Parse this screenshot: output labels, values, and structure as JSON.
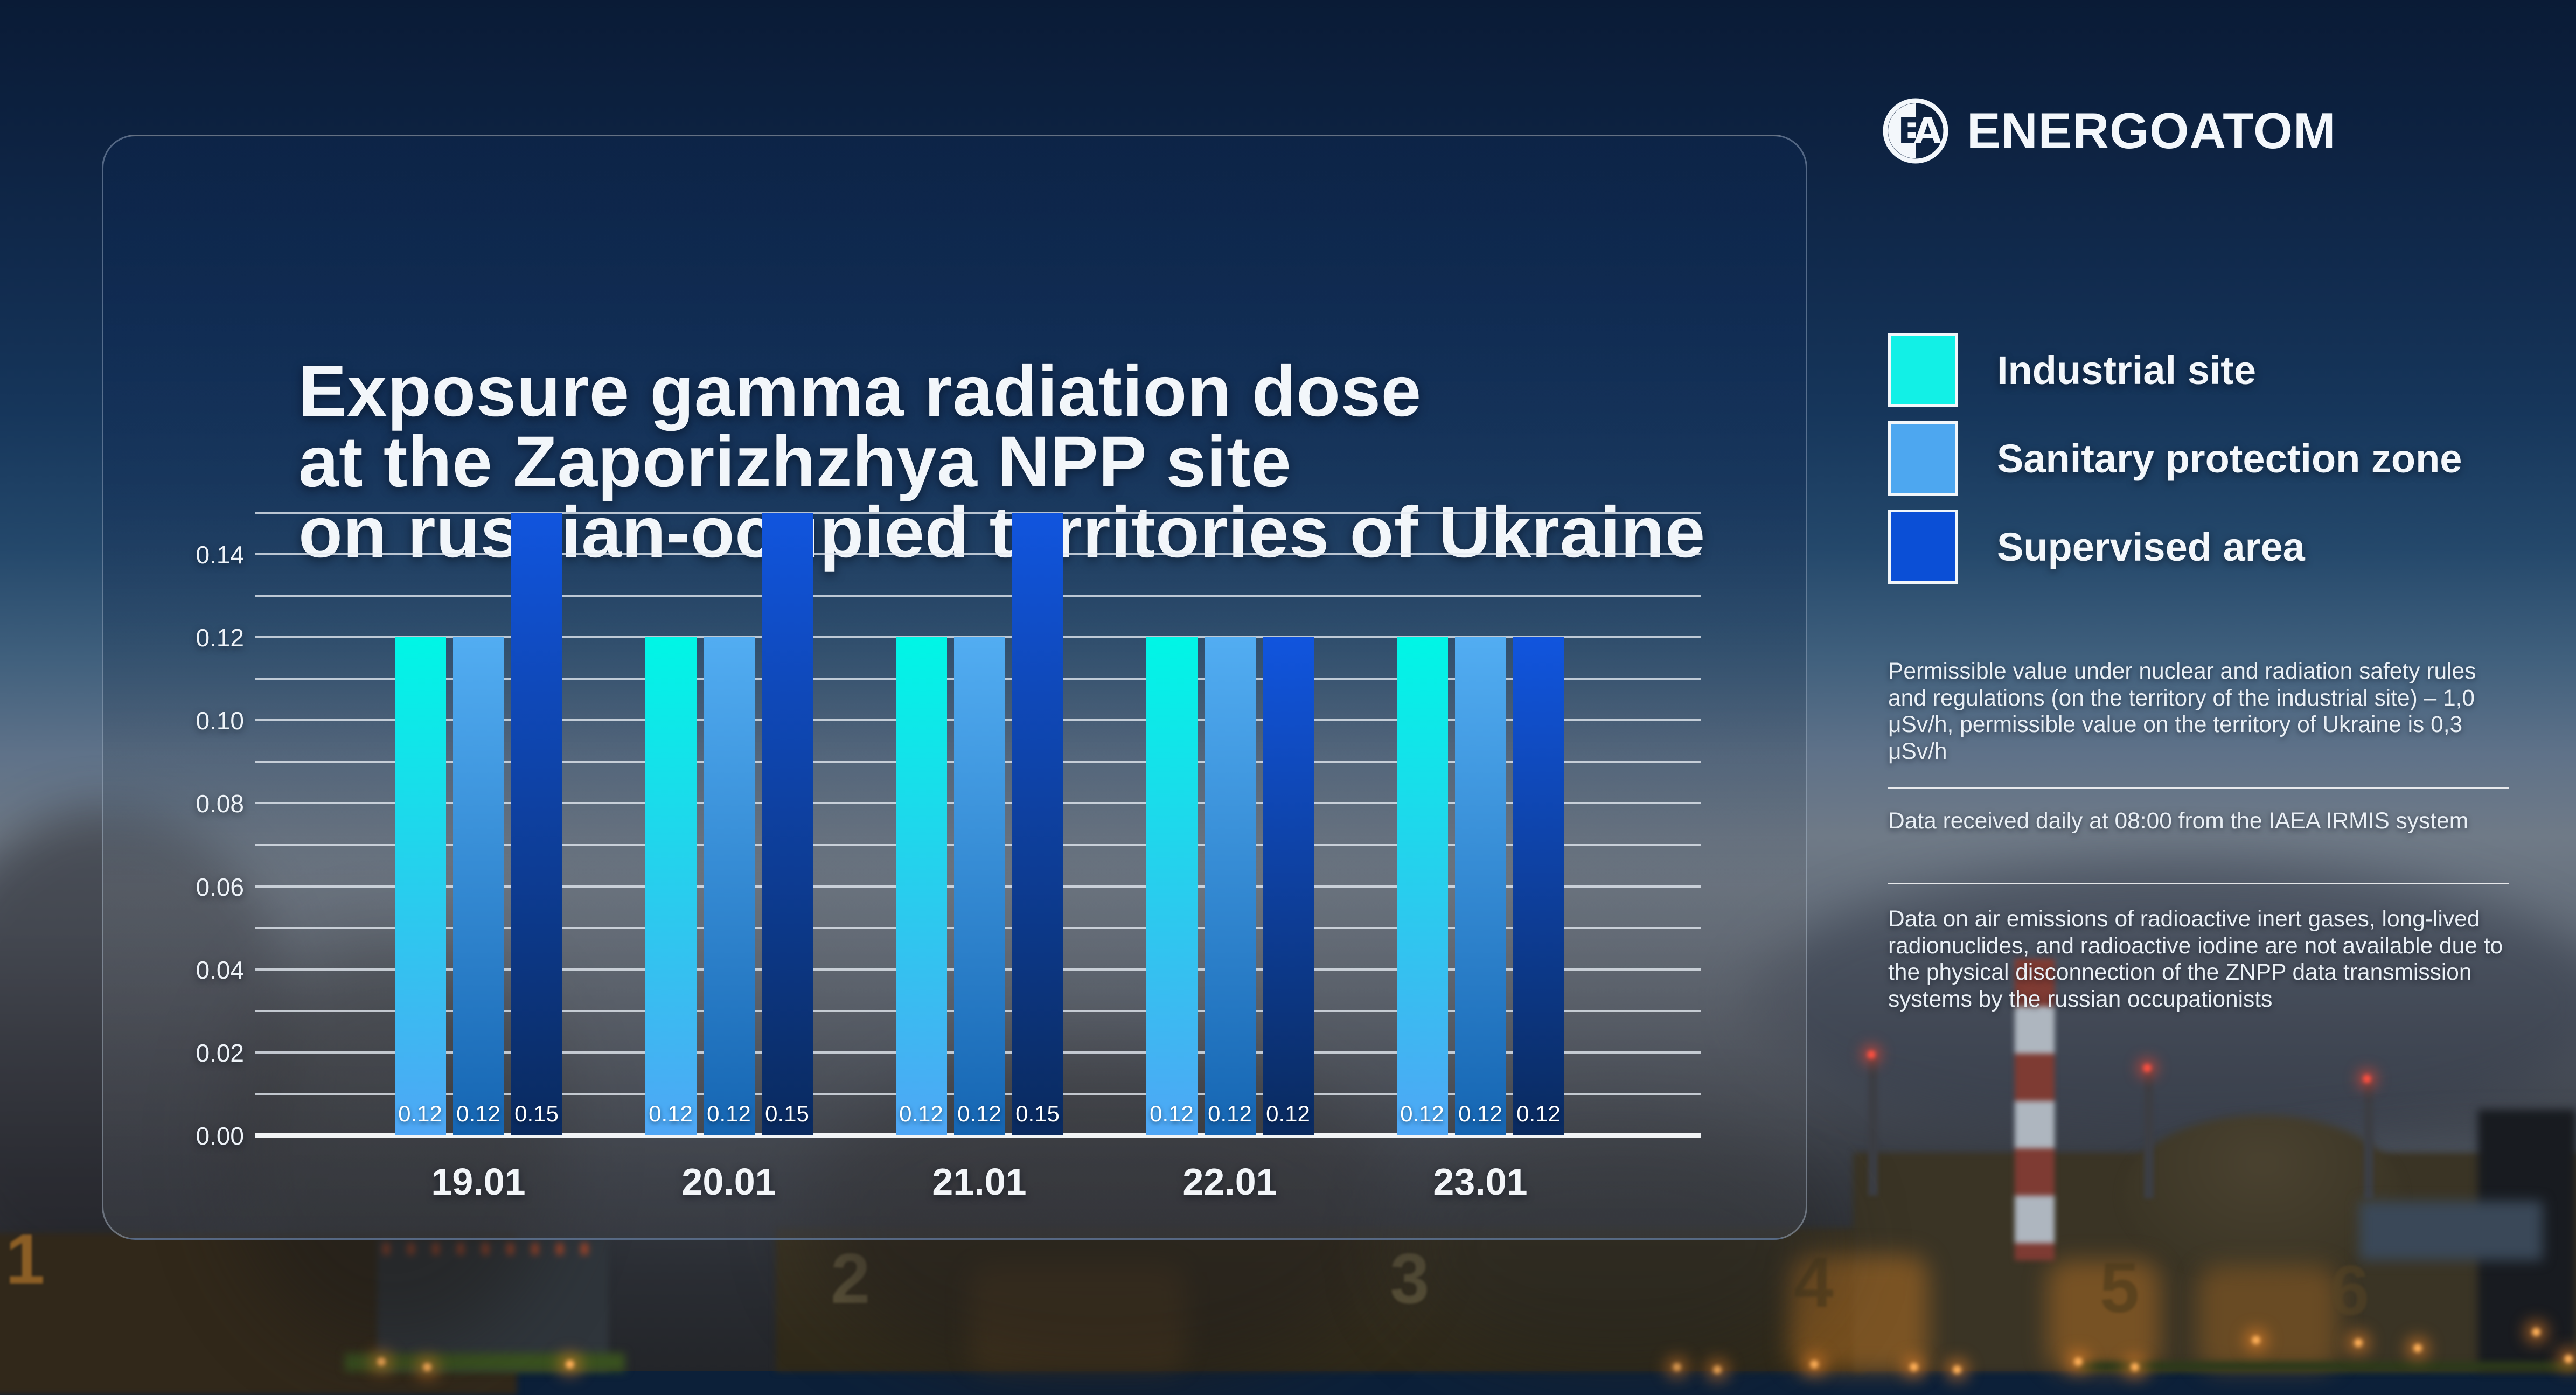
{
  "brand": {
    "name": "ENERGOATOM",
    "monogram_left": "E",
    "monogram_right": "A"
  },
  "title": {
    "lines": [
      "Exposure gamma radiation dose",
      "at the Zaporizhzhya NPP site",
      "on russian-ocupied territories of Ukraine"
    ]
  },
  "legend": {
    "items": [
      {
        "label": "Industrial site",
        "color": "#12f0e6"
      },
      {
        "label": "Sanitary protection zone",
        "color": "#4da7f0"
      },
      {
        "label": "Supervised area",
        "color": "#0b4fd6"
      }
    ]
  },
  "notes": {
    "permissible": "Permissible value under nuclear and radiation safety rules and regulations (on the territory of the industrial site) – 1,0 μSv/h, permissible value on the territory of Ukraine is 0,3 μSv/h",
    "daily": "Data received daily at 08:00 from the IAEA IRMIS system",
    "emissions": "Data on air emissions of radioactive inert gases, long-lived radionuclides, and radioactive iodine are not available due to the physical disconnection of the ZNPP data transmission systems by the russian occupationists"
  },
  "chart_data": {
    "type": "bar",
    "title": "Exposure gamma radiation dose at the Zaporizhzhya NPP site on russian-ocupied territories of Ukraine",
    "categories": [
      "19.01",
      "20.01",
      "21.01",
      "22.01",
      "23.01"
    ],
    "series": [
      {
        "name": "Industrial site",
        "values": [
          0.12,
          0.12,
          0.12,
          0.12,
          0.12
        ],
        "color_top": "#00f6e6",
        "color_bottom": "#4fa6f5"
      },
      {
        "name": "Sanitary protection zone",
        "values": [
          0.12,
          0.12,
          0.12,
          0.12,
          0.12
        ],
        "color_top": "#52adf2",
        "color_bottom": "#1565b2"
      },
      {
        "name": "Supervised area",
        "values": [
          0.15,
          0.15,
          0.15,
          0.12,
          0.12
        ],
        "color_top": "#1155de",
        "color_bottom": "#0a2a5e"
      }
    ],
    "ylim": [
      0,
      0.15
    ],
    "grid_step": 0.01,
    "ytick_label_step": 0.02,
    "grid": true,
    "legend_position": "right",
    "value_labels": "inside-bottom"
  },
  "background": {
    "unit_numbers": [
      "1",
      "2",
      "3",
      "4",
      "5",
      "6"
    ]
  }
}
